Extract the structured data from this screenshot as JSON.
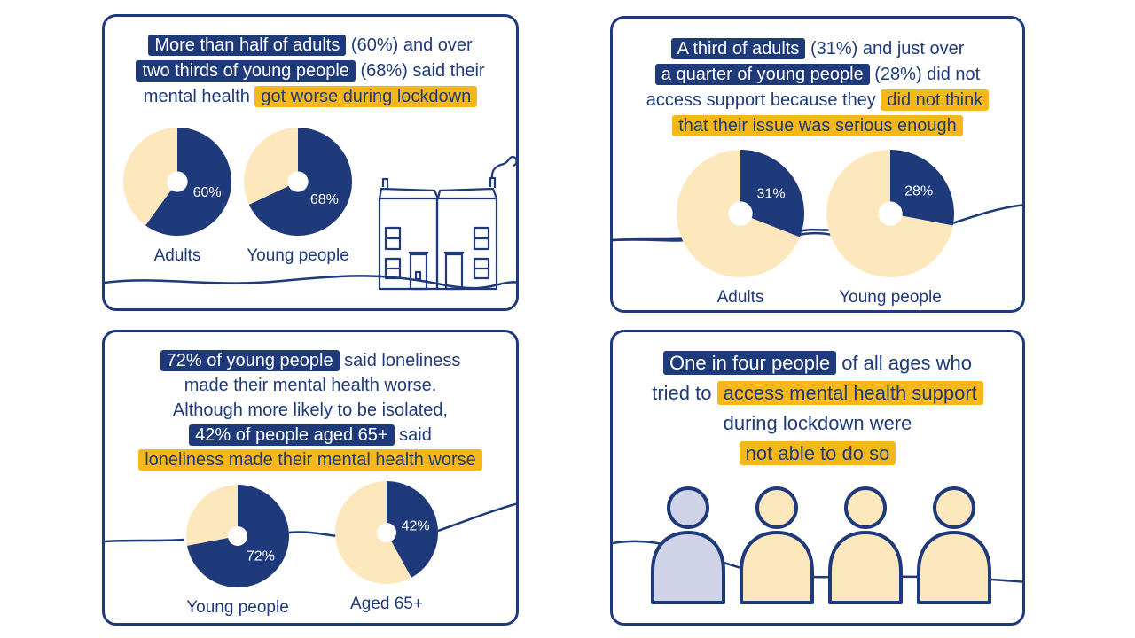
{
  "colors": {
    "navy": "#1f3a7a",
    "cream": "#fde8bd",
    "yellow": "#f6b819",
    "lavender": "#d0d3e8"
  },
  "panels": [
    {
      "segments": [
        {
          "t": "More than half of adults",
          "s": "b"
        },
        {
          "t": " (60%) and over ",
          "s": ""
        },
        {
          "br": true
        },
        {
          "t": "two thirds of young people",
          "s": "b"
        },
        {
          "t": " (68%) said their",
          "s": ""
        },
        {
          "br": true
        },
        {
          "t": "mental health ",
          "s": ""
        },
        {
          "t": "got worse during lockdown",
          "s": "y"
        }
      ]
    },
    {
      "segments": [
        {
          "t": "A third of adults",
          "s": "b"
        },
        {
          "t": " (31%) and just over",
          "s": ""
        },
        {
          "br": true
        },
        {
          "t": "a quarter of young people",
          "s": "b"
        },
        {
          "t": " (28%) did not",
          "s": ""
        },
        {
          "br": true
        },
        {
          "t": "access support because they ",
          "s": ""
        },
        {
          "t": "did not think",
          "s": "y"
        },
        {
          "br": true
        },
        {
          "t": "that their issue was serious enough",
          "s": "y"
        }
      ]
    },
    {
      "segments": [
        {
          "t": "72% of young people",
          "s": "b"
        },
        {
          "t": " said loneliness",
          "s": ""
        },
        {
          "br": true
        },
        {
          "t": "made their mental health worse.",
          "s": ""
        },
        {
          "br": true
        },
        {
          "t": "Although more likely to be isolated,",
          "s": ""
        },
        {
          "br": true
        },
        {
          "t": "42% of people aged 65+",
          "s": "b"
        },
        {
          "t": " said",
          "s": ""
        },
        {
          "br": true
        },
        {
          "t": "loneliness made their mental health worse",
          "s": "y"
        }
      ]
    },
    {
      "segments": [
        {
          "t": "One in four people",
          "s": "b"
        },
        {
          "t": " of all ages who",
          "s": ""
        },
        {
          "br": true
        },
        {
          "t": "tried to ",
          "s": ""
        },
        {
          "t": "access mental health support",
          "s": "y"
        },
        {
          "br": true
        },
        {
          "t": "during lockdown were",
          "s": ""
        },
        {
          "br": true
        },
        {
          "t": "not able to do so",
          "s": "y"
        }
      ]
    }
  ],
  "chart_data": [
    {
      "type": "pie",
      "categories": [
        "Adults",
        "Young people"
      ],
      "values": [
        60,
        68
      ],
      "value_labels": [
        "60%",
        "68%"
      ]
    },
    {
      "type": "pie",
      "categories": [
        "Adults",
        "Young people"
      ],
      "values": [
        31,
        28
      ],
      "value_labels": [
        "31%",
        "28%"
      ]
    },
    {
      "type": "pie",
      "categories": [
        "Young people",
        "Aged 65+"
      ],
      "values": [
        72,
        42
      ],
      "value_labels": [
        "72%",
        "42%"
      ]
    }
  ],
  "people": {
    "total": 4,
    "highlighted": 1
  }
}
